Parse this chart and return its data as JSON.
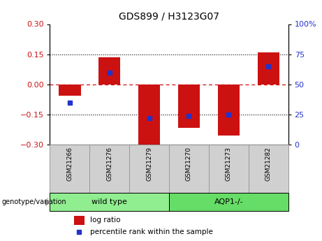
{
  "title": "GDS899 / H3123G07",
  "samples": [
    "GSM21266",
    "GSM21276",
    "GSM21279",
    "GSM21270",
    "GSM21273",
    "GSM21282"
  ],
  "log_ratios": [
    -0.055,
    0.135,
    -0.3,
    -0.215,
    -0.255,
    0.16
  ],
  "percentile_ranks": [
    35,
    60,
    22,
    24,
    25,
    65
  ],
  "ylim_left": [
    -0.3,
    0.3
  ],
  "ylim_right": [
    0,
    100
  ],
  "yticks_left": [
    -0.3,
    -0.15,
    0,
    0.15,
    0.3
  ],
  "yticks_right": [
    0,
    25,
    50,
    75,
    100
  ],
  "groups": [
    {
      "label": "wild type",
      "indices": [
        0,
        1,
        2
      ],
      "color": "#90EE90"
    },
    {
      "label": "AQP1-/-",
      "indices": [
        3,
        4,
        5
      ],
      "color": "#66DD66"
    }
  ],
  "bar_color": "#CC1111",
  "percentile_color": "#2233CC",
  "bar_width": 0.55,
  "background_color": "#ffffff",
  "plot_bg": "#ffffff",
  "tick_label_color_left": "#CC1111",
  "tick_label_color_right": "#2233CC",
  "zero_line_color": "#CC1111",
  "group_label": "genotype/variation",
  "legend_items": [
    "log ratio",
    "percentile rank within the sample"
  ],
  "sample_box_color": "#D0D0D0",
  "sample_box_edge": "#999999"
}
